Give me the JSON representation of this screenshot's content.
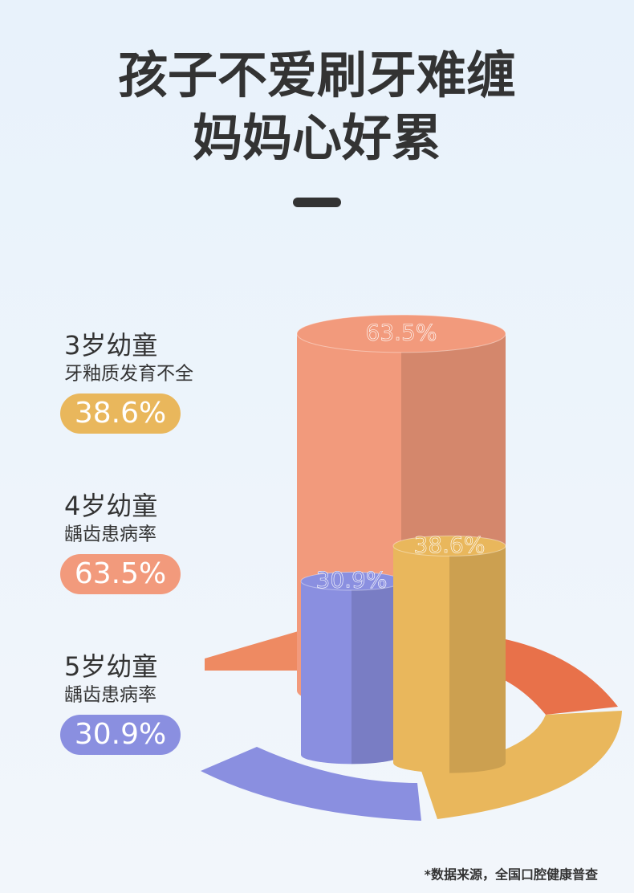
{
  "chart_data": {
    "type": "cylinder",
    "title": [
      "孩子不爱刷牙难缠",
      "妈妈心好累"
    ],
    "categories": [
      "3岁幼童",
      "4岁幼童",
      "5岁幼童"
    ],
    "descriptions": [
      "牙釉质发育不全",
      "龋齿患病率",
      "龋齿患病率"
    ],
    "values": [
      38.6,
      63.5,
      30.9
    ],
    "value_labels": [
      "38.6%",
      "63.5%",
      "30.9%"
    ],
    "colors": [
      "#e9b75c",
      "#f29a7c",
      "#8a8fe0"
    ],
    "source": "*数据来源，全国口腔健康普查"
  }
}
